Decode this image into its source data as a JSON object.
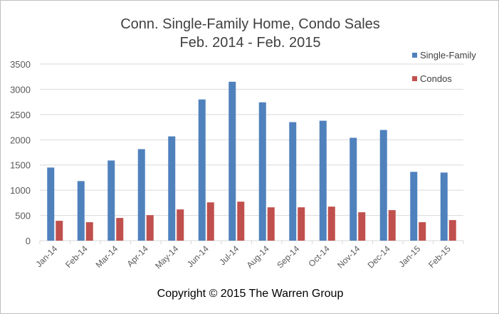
{
  "chart_data": {
    "type": "bar",
    "title": [
      "Conn. Single-Family Home, Condo Sales",
      "Feb. 2014 - Feb. 2015"
    ],
    "xlabel": "",
    "ylabel": "",
    "ylim": [
      0,
      3500
    ],
    "yticks": [
      "0",
      "500",
      "1000",
      "1500",
      "2000",
      "2500",
      "3000",
      "3500"
    ],
    "grid": true,
    "legend_position": "top-right",
    "categories": [
      "Jan-14",
      "Feb-14",
      "Mar-14",
      "Apr-14",
      "May-14",
      "Jun-14",
      "Jul-14",
      "Aug-14",
      "Sep-14",
      "Oct-14",
      "Nov-14",
      "Dec-14",
      "Jan-15",
      "Feb-15"
    ],
    "series": [
      {
        "name": "Single-Family",
        "color": "#4f81bd",
        "values": [
          1449,
          1181,
          1589,
          1814,
          2067,
          2799,
          3150,
          2742,
          2349,
          2377,
          2039,
          2194,
          1364,
          1350
        ]
      },
      {
        "name": "Condos",
        "color": "#c0504d",
        "values": [
          394,
          366,
          450,
          506,
          619,
          759,
          773,
          661,
          661,
          675,
          563,
          605,
          366,
          408
        ]
      }
    ]
  },
  "footer": {
    "copyright": "Copyright © 2015 The Warren Group"
  }
}
